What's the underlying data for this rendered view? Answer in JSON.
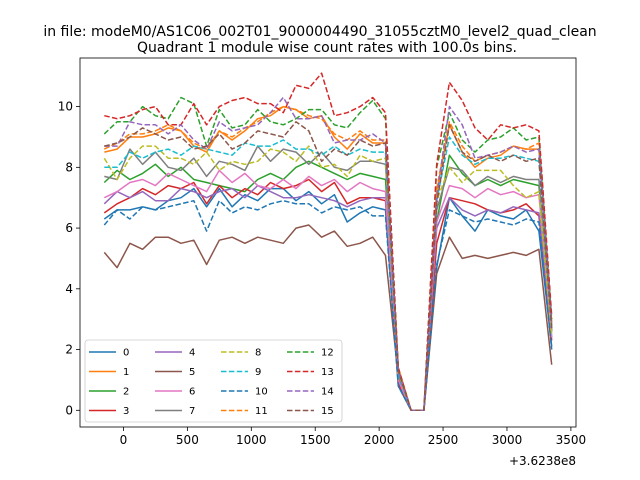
{
  "chart_data": {
    "type": "line",
    "suptitle": "in file: modeM0/AS1C06_002T01_9000004490_31055cztM0_level2_quad_clean",
    "title": "Quadrant 1 module wise count rates with 100.0s bins.",
    "xlabel": "",
    "ylabel": "",
    "x_offset_label": "+3.6238e8",
    "xlim": [
      -340,
      3540
    ],
    "ylim": [
      -0.55,
      11.6
    ],
    "xticks": [
      0,
      500,
      1000,
      1500,
      2000,
      2500,
      3000,
      3500
    ],
    "yticks": [
      0,
      2,
      4,
      6,
      8,
      10
    ],
    "legend_position": "lower-left",
    "x": [
      -150,
      -50,
      50,
      150,
      250,
      350,
      450,
      550,
      650,
      750,
      850,
      950,
      1050,
      1150,
      1250,
      1350,
      1450,
      1550,
      1650,
      1750,
      1850,
      1950,
      2050,
      2150,
      2250,
      2350,
      2450,
      2550,
      2650,
      2750,
      2850,
      2950,
      3050,
      3150,
      3250,
      3350
    ],
    "series": [
      {
        "name": "0",
        "color": "#1f77b4",
        "dash": "solid",
        "values": [
          6.3,
          6.6,
          6.6,
          6.7,
          6.6,
          6.9,
          7.0,
          7.3,
          6.7,
          7.3,
          6.7,
          7.1,
          6.9,
          7.3,
          7.3,
          6.9,
          7.2,
          6.8,
          7.1,
          6.2,
          6.5,
          6.7,
          6.6,
          0.8,
          0.0,
          0.0,
          4.7,
          7.0,
          6.4,
          5.9,
          6.6,
          6.4,
          6.3,
          6.6,
          5.9,
          2.1
        ]
      },
      {
        "name": "1",
        "color": "#ff7f0e",
        "dash": "solid",
        "values": [
          8.5,
          8.6,
          9.0,
          9.0,
          9.1,
          9.3,
          9.2,
          8.7,
          8.5,
          9.2,
          8.9,
          9.2,
          9.6,
          9.7,
          10.0,
          9.9,
          9.6,
          9.7,
          9.0,
          8.6,
          9.1,
          8.8,
          8.8,
          1.4,
          0.0,
          0.0,
          7.2,
          9.4,
          8.5,
          8.0,
          8.3,
          8.4,
          8.7,
          8.6,
          8.6,
          2.9
        ]
      },
      {
        "name": "2",
        "color": "#2ca02c",
        "dash": "solid",
        "values": [
          7.5,
          7.9,
          7.6,
          7.8,
          8.1,
          7.7,
          8.0,
          7.6,
          7.5,
          7.4,
          7.3,
          7.2,
          7.6,
          7.8,
          7.6,
          8.0,
          8.2,
          8.0,
          7.8,
          7.6,
          7.8,
          7.7,
          7.6,
          1.0,
          0.0,
          0.0,
          6.2,
          8.4,
          7.8,
          7.4,
          7.6,
          7.4,
          7.6,
          7.5,
          7.4,
          2.6
        ]
      },
      {
        "name": "3",
        "color": "#d62728",
        "dash": "solid",
        "values": [
          6.5,
          6.8,
          7.0,
          7.3,
          7.1,
          7.4,
          7.3,
          7.5,
          6.8,
          7.4,
          7.0,
          7.3,
          7.1,
          7.5,
          7.3,
          7.4,
          7.6,
          7.2,
          7.5,
          6.8,
          7.0,
          7.0,
          6.9,
          0.9,
          0.0,
          0.0,
          5.5,
          7.0,
          6.9,
          6.8,
          6.6,
          6.5,
          6.6,
          6.8,
          6.4,
          2.3
        ]
      },
      {
        "name": "4",
        "color": "#9467bd",
        "dash": "solid",
        "values": [
          6.8,
          7.2,
          7.0,
          7.2,
          6.9,
          6.9,
          7.3,
          7.2,
          7.0,
          7.2,
          7.3,
          7.0,
          7.4,
          7.2,
          7.0,
          7.0,
          7.1,
          7.0,
          6.9,
          6.7,
          6.9,
          7.0,
          7.0,
          1.0,
          0.0,
          0.0,
          6.0,
          7.0,
          6.6,
          6.4,
          6.6,
          6.5,
          6.7,
          6.6,
          6.5,
          2.4
        ]
      },
      {
        "name": "5",
        "color": "#8c564b",
        "dash": "solid",
        "values": [
          5.2,
          4.7,
          5.5,
          5.3,
          5.7,
          5.7,
          5.5,
          5.6,
          4.8,
          5.6,
          5.7,
          5.5,
          5.7,
          5.6,
          5.5,
          6.0,
          6.1,
          5.7,
          5.9,
          5.4,
          5.5,
          5.7,
          5.1,
          1.1,
          0.0,
          0.0,
          4.5,
          5.7,
          5.0,
          5.1,
          5.0,
          5.1,
          5.2,
          5.1,
          5.3,
          1.5
        ]
      },
      {
        "name": "6",
        "color": "#e377c2",
        "dash": "solid",
        "values": [
          7.0,
          7.2,
          7.5,
          7.6,
          7.4,
          7.8,
          7.6,
          7.4,
          7.2,
          7.9,
          7.5,
          7.8,
          7.4,
          7.3,
          7.6,
          7.3,
          7.7,
          7.4,
          7.6,
          7.2,
          7.5,
          7.3,
          7.2,
          1.0,
          0.0,
          0.0,
          6.2,
          7.4,
          7.3,
          7.0,
          7.3,
          7.1,
          7.2,
          7.0,
          7.1,
          2.4
        ]
      },
      {
        "name": "7",
        "color": "#7f7f7f",
        "dash": "solid",
        "values": [
          7.7,
          7.6,
          8.6,
          8.1,
          8.5,
          8.0,
          7.9,
          8.3,
          7.7,
          8.2,
          8.1,
          7.9,
          8.7,
          8.2,
          8.6,
          8.5,
          8.1,
          8.5,
          8.0,
          7.9,
          8.2,
          8.2,
          8.1,
          1.2,
          0.0,
          0.0,
          6.6,
          8.0,
          7.9,
          7.4,
          7.7,
          7.5,
          7.7,
          7.6,
          7.6,
          2.6
        ]
      },
      {
        "name": "8",
        "color": "#bcbd22",
        "dash": "dash",
        "values": [
          8.3,
          7.6,
          8.3,
          8.7,
          8.7,
          8.3,
          8.3,
          8.1,
          8.5,
          7.9,
          8.2,
          8.1,
          8.2,
          8.6,
          8.5,
          8.2,
          8.7,
          8.0,
          8.1,
          7.7,
          8.4,
          8.2,
          8.3,
          1.2,
          0.0,
          0.0,
          6.9,
          8.0,
          7.5,
          7.9,
          7.9,
          7.9,
          7.4,
          7.0,
          7.2,
          2.5
        ]
      },
      {
        "name": "9",
        "color": "#17becf",
        "dash": "dash",
        "values": [
          8.0,
          8.0,
          8.5,
          8.3,
          8.5,
          8.6,
          8.4,
          8.7,
          8.6,
          8.5,
          8.4,
          8.8,
          8.7,
          8.7,
          8.9,
          8.6,
          8.6,
          8.4,
          8.7,
          8.4,
          8.6,
          8.5,
          8.5,
          1.2,
          0.0,
          0.0,
          6.9,
          9.0,
          8.4,
          8.1,
          8.3,
          8.3,
          8.4,
          8.3,
          8.2,
          2.7
        ]
      },
      {
        "name": "10",
        "color": "#1f77b4",
        "dash": "dash",
        "values": [
          6.1,
          6.6,
          6.3,
          6.7,
          6.6,
          6.7,
          6.8,
          6.9,
          5.9,
          6.9,
          6.5,
          6.7,
          6.6,
          6.8,
          6.9,
          6.8,
          6.8,
          6.5,
          6.7,
          6.6,
          6.7,
          6.4,
          6.4,
          0.8,
          0.0,
          0.0,
          4.8,
          6.6,
          6.4,
          6.2,
          6.3,
          6.2,
          6.1,
          6.3,
          6.2,
          2.0
        ]
      },
      {
        "name": "11",
        "color": "#ff7f0e",
        "dash": "dash",
        "values": [
          8.6,
          8.8,
          9.1,
          9.1,
          9.2,
          9.4,
          9.2,
          8.8,
          8.6,
          9.2,
          9.0,
          9.3,
          9.5,
          9.8,
          10.0,
          9.9,
          9.7,
          9.6,
          9.1,
          8.9,
          9.2,
          8.9,
          8.9,
          1.4,
          0.0,
          0.0,
          7.3,
          9.5,
          8.7,
          8.2,
          8.4,
          8.5,
          8.7,
          8.6,
          8.8,
          2.9
        ]
      },
      {
        "name": "12",
        "color": "#2ca02c",
        "dash": "dash",
        "values": [
          9.1,
          9.5,
          9.5,
          10.0,
          9.7,
          9.6,
          10.3,
          10.1,
          8.7,
          9.9,
          9.3,
          9.4,
          9.9,
          9.5,
          9.4,
          9.6,
          9.9,
          9.9,
          9.4,
          9.3,
          9.8,
          10.2,
          9.6,
          1.3,
          0.0,
          0.0,
          8.0,
          9.8,
          8.9,
          8.5,
          8.9,
          9.0,
          9.3,
          8.9,
          9.0,
          3.0
        ]
      },
      {
        "name": "13",
        "color": "#d62728",
        "dash": "dash",
        "values": [
          9.7,
          9.6,
          9.7,
          9.9,
          10.0,
          9.4,
          9.4,
          10.1,
          9.4,
          10.0,
          10.2,
          10.3,
          10.1,
          10.1,
          9.8,
          10.7,
          10.6,
          11.1,
          9.7,
          9.8,
          10.0,
          10.3,
          9.8,
          1.4,
          0.0,
          0.0,
          8.1,
          10.8,
          10.2,
          9.3,
          8.9,
          9.4,
          9.3,
          9.4,
          9.2,
          3.1
        ]
      },
      {
        "name": "14",
        "color": "#9467bd",
        "dash": "dash",
        "values": [
          8.7,
          8.7,
          9.5,
          9.4,
          9.4,
          9.1,
          9.4,
          8.9,
          8.6,
          9.5,
          9.2,
          9.3,
          9.4,
          9.8,
          10.3,
          9.6,
          9.6,
          9.7,
          8.8,
          8.9,
          8.9,
          9.1,
          8.8,
          1.3,
          0.0,
          0.0,
          7.0,
          10.0,
          9.4,
          8.3,
          8.4,
          8.5,
          8.7,
          8.5,
          8.6,
          2.8
        ]
      },
      {
        "name": "15",
        "color": "#8c564b",
        "dash": "dash",
        "values": [
          8.7,
          8.8,
          9.0,
          9.3,
          9.1,
          8.9,
          9.0,
          8.6,
          8.7,
          9.1,
          8.6,
          8.8,
          9.2,
          9.1,
          9.0,
          9.5,
          9.2,
          8.2,
          8.6,
          8.4,
          8.9,
          8.7,
          8.8,
          1.3,
          0.0,
          0.0,
          6.8,
          9.4,
          8.5,
          8.2,
          8.4,
          8.2,
          8.4,
          8.2,
          8.3,
          2.7
        ]
      }
    ]
  }
}
